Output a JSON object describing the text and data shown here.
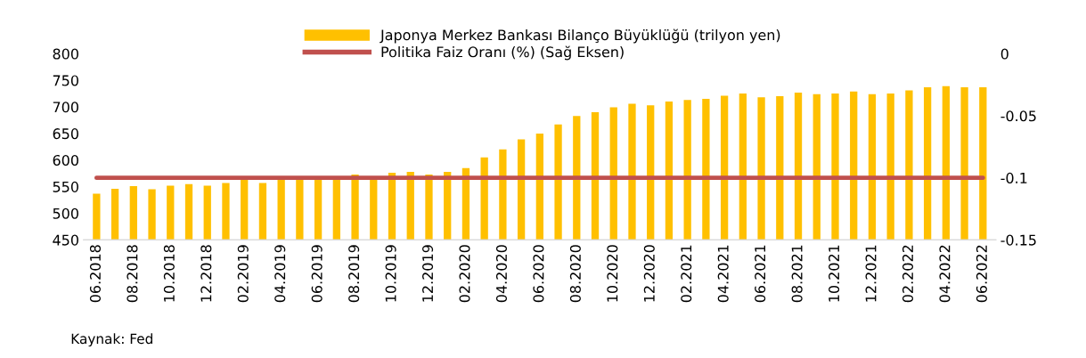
{
  "chart_data": {
    "type": "bar",
    "categories": [
      "06.2018",
      null,
      "08.2018",
      null,
      "10.2018",
      null,
      "12.2018",
      null,
      "02.2019",
      null,
      "04.2019",
      null,
      "06.2019",
      null,
      "08.2019",
      null,
      "10.2019",
      null,
      "12.2019",
      null,
      "02.2020",
      null,
      "04.2020",
      null,
      "06.2020",
      null,
      "08.2020",
      null,
      "10.2020",
      null,
      "12.2020",
      null,
      "02.2021",
      null,
      "04.2021",
      null,
      "06.2021",
      null,
      "08.2021",
      null,
      "10.2021",
      null,
      "12.2021",
      null,
      "02.2022",
      null,
      "04.2022",
      null,
      "06.2022"
    ],
    "series": [
      {
        "name": "Japonya Merkez Bankası Bilanço Büyüklüğü (trilyon yen)",
        "color": "#ffc000",
        "values": [
          537,
          546,
          551,
          545,
          552,
          555,
          552,
          557,
          566,
          557,
          566,
          566,
          566,
          566,
          573,
          566,
          576,
          578,
          573,
          578,
          585,
          605,
          620,
          639,
          650,
          667,
          683,
          690,
          699,
          706,
          703,
          710,
          713,
          715,
          721,
          725,
          718,
          720,
          727,
          724,
          725,
          729,
          724,
          725,
          731,
          737,
          739,
          737,
          737
        ]
      },
      {
        "name": "Politika Faiz Oranı (%) (Sağ Eksen)",
        "type": "line",
        "axis": "y2",
        "color": "#c0504d",
        "values": [
          -0.1,
          -0.1,
          -0.1,
          -0.1,
          -0.1,
          -0.1,
          -0.1,
          -0.1,
          -0.1,
          -0.1,
          -0.1,
          -0.1,
          -0.1,
          -0.1,
          -0.1,
          -0.1,
          -0.1,
          -0.1,
          -0.1,
          -0.1,
          -0.1,
          -0.1,
          -0.1,
          -0.1,
          -0.1,
          -0.1,
          -0.1,
          -0.1,
          -0.1,
          -0.1,
          -0.1,
          -0.1,
          -0.1,
          -0.1,
          -0.1,
          -0.1,
          -0.1,
          -0.1,
          -0.1,
          -0.1,
          -0.1,
          -0.1,
          -0.1,
          -0.1,
          -0.1,
          -0.1,
          -0.1,
          -0.1,
          -0.1
        ]
      }
    ],
    "ylim": [
      450,
      800
    ],
    "yticks": [
      450,
      500,
      550,
      600,
      650,
      700,
      750,
      800
    ],
    "y2lim": [
      -0.15,
      0
    ],
    "y2ticks": [
      -0.15,
      -0.1,
      -0.05,
      0
    ],
    "grid": false,
    "legend": "top",
    "marker": "none",
    "line_style": "solid",
    "annotations": [
      "Kaynak: Fed"
    ]
  }
}
